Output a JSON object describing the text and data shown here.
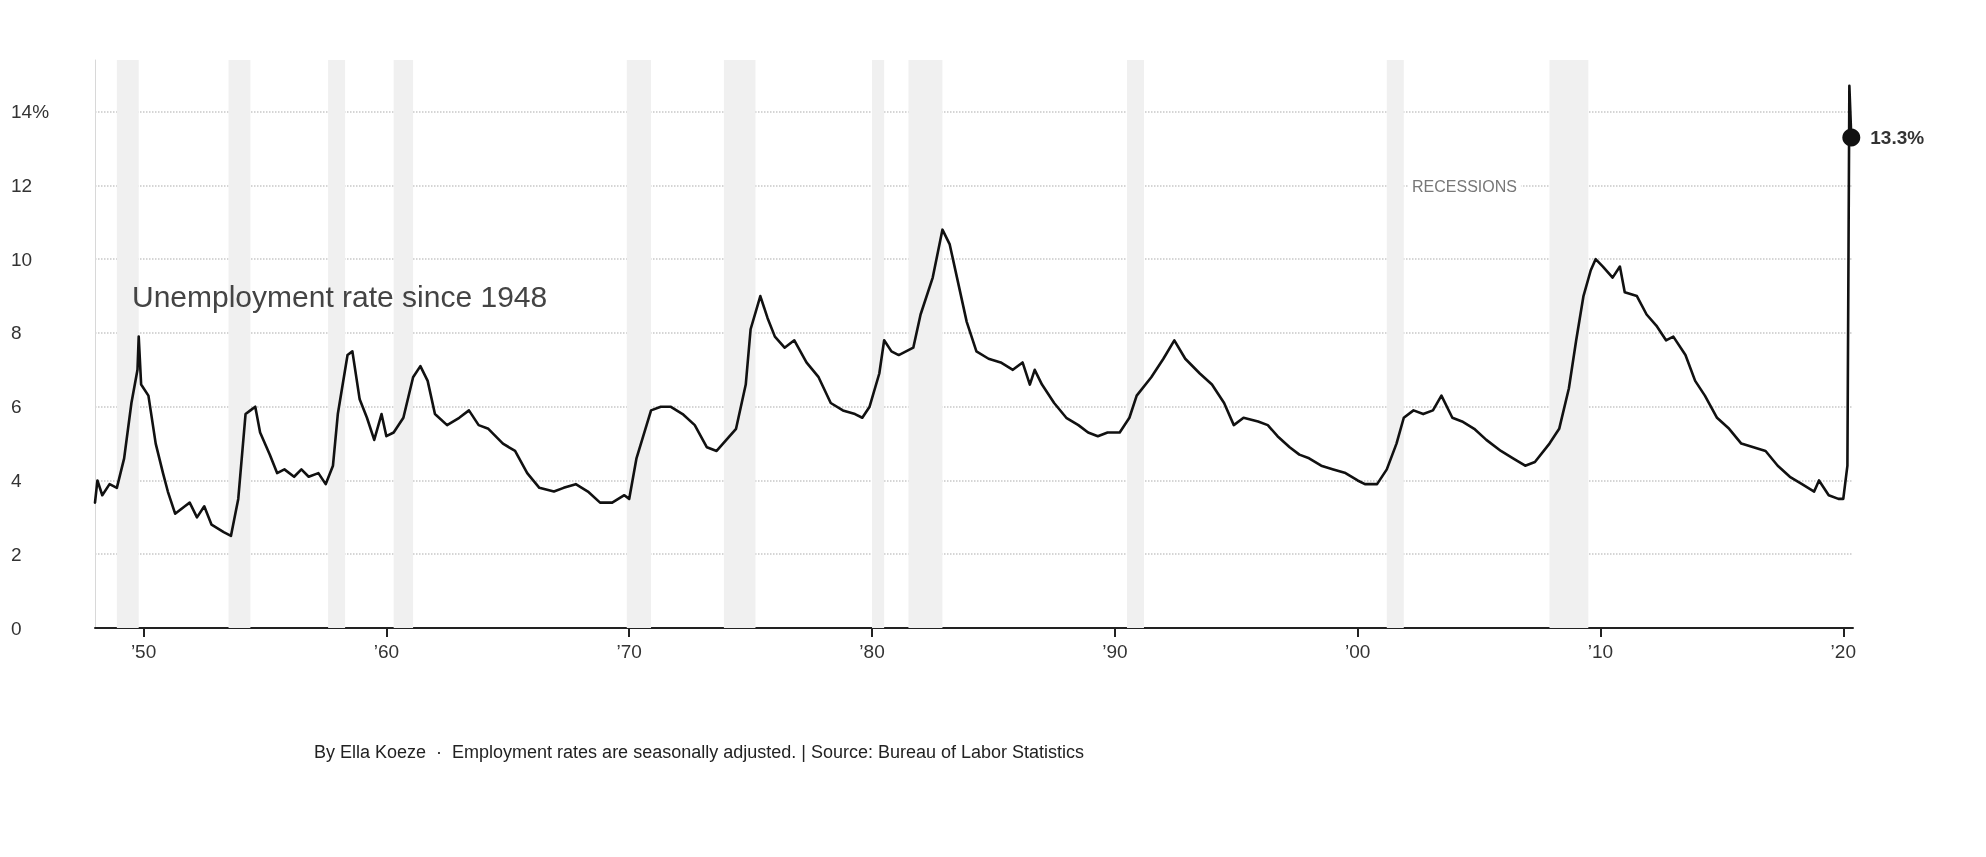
{
  "chart_data": {
    "type": "line",
    "title": "Unemployment rate since 1948",
    "x": [
      1948.0,
      1948.1,
      1948.3,
      1948.6,
      1948.9,
      1949.2,
      1949.5,
      1949.75,
      1949.8,
      1949.9,
      1950.2,
      1950.5,
      1950.8,
      1951.0,
      1951.3,
      1951.7,
      1951.9,
      1952.2,
      1952.5,
      1952.8,
      1953.3,
      1953.6,
      1953.9,
      1954.2,
      1954.4,
      1954.6,
      1954.8,
      1955.2,
      1955.5,
      1955.8,
      1956.2,
      1956.5,
      1956.8,
      1957.2,
      1957.5,
      1957.8,
      1958.0,
      1958.4,
      1958.6,
      1958.9,
      1959.2,
      1959.5,
      1959.8,
      1960.0,
      1960.3,
      1960.7,
      1961.1,
      1961.4,
      1961.7,
      1962.0,
      1962.5,
      1963.0,
      1963.4,
      1963.8,
      1964.2,
      1964.8,
      1965.3,
      1965.8,
      1966.3,
      1966.9,
      1967.3,
      1967.8,
      1968.3,
      1968.8,
      1969.3,
      1969.8,
      1970.0,
      1970.3,
      1970.9,
      1971.3,
      1971.7,
      1972.2,
      1972.7,
      1973.2,
      1973.6,
      1974.0,
      1974.4,
      1974.8,
      1975.0,
      1975.4,
      1975.7,
      1976.0,
      1976.4,
      1976.8,
      1977.3,
      1977.8,
      1978.3,
      1978.8,
      1979.3,
      1979.6,
      1979.9,
      1980.3,
      1980.5,
      1980.8,
      1981.1,
      1981.4,
      1981.7,
      1982.0,
      1982.5,
      1982.9,
      1983.2,
      1983.5,
      1983.9,
      1984.3,
      1984.8,
      1985.3,
      1985.8,
      1986.2,
      1986.5,
      1986.7,
      1987.0,
      1987.5,
      1988.0,
      1988.5,
      1988.9,
      1989.3,
      1989.7,
      1990.2,
      1990.6,
      1990.9,
      1991.5,
      1992.0,
      1992.45,
      1992.9,
      1993.5,
      1994.0,
      1994.5,
      1994.9,
      1995.3,
      1995.9,
      1996.3,
      1996.7,
      1997.2,
      1997.6,
      1998.0,
      1998.5,
      1999.0,
      1999.5,
      2000.0,
      2000.3,
      2000.8,
      2001.2,
      2001.6,
      2001.9,
      2002.3,
      2002.7,
      2003.1,
      2003.45,
      2003.9,
      2004.3,
      2004.8,
      2005.3,
      2005.9,
      2006.4,
      2006.9,
      2007.3,
      2007.9,
      2008.3,
      2008.7,
      2009.0,
      2009.3,
      2009.6,
      2009.8,
      2010.1,
      2010.5,
      2010.8,
      2011.0,
      2011.5,
      2011.9,
      2012.3,
      2012.7,
      2013.0,
      2013.5,
      2013.9,
      2014.3,
      2014.8,
      2015.3,
      2015.8,
      2016.3,
      2016.8,
      2017.3,
      2017.8,
      2018.3,
      2018.8,
      2019.0,
      2019.4,
      2019.8,
      2020.0,
      2020.17,
      2020.25,
      2020.33
    ],
    "series": [
      {
        "color": "#111111",
        "values": [
          3.4,
          4.0,
          3.6,
          3.9,
          3.8,
          4.6,
          6.1,
          7.0,
          7.9,
          6.6,
          6.3,
          5.0,
          4.2,
          3.7,
          3.1,
          3.3,
          3.4,
          3.0,
          3.3,
          2.8,
          2.6,
          2.5,
          3.5,
          5.8,
          5.9,
          6.0,
          5.3,
          4.7,
          4.2,
          4.3,
          4.1,
          4.3,
          4.1,
          4.2,
          3.9,
          4.4,
          5.8,
          7.4,
          7.5,
          6.2,
          5.7,
          5.1,
          5.8,
          5.2,
          5.3,
          5.7,
          6.8,
          7.1,
          6.7,
          5.8,
          5.5,
          5.7,
          5.9,
          5.5,
          5.4,
          5.0,
          4.8,
          4.2,
          3.8,
          3.7,
          3.8,
          3.9,
          3.7,
          3.4,
          3.4,
          3.6,
          3.5,
          4.6,
          5.9,
          6.0,
          6.0,
          5.8,
          5.5,
          4.9,
          4.8,
          5.1,
          5.4,
          6.6,
          8.1,
          9.0,
          8.4,
          7.9,
          7.6,
          7.8,
          7.2,
          6.8,
          6.1,
          5.9,
          5.8,
          5.7,
          6.0,
          6.9,
          7.8,
          7.5,
          7.4,
          7.5,
          7.6,
          8.5,
          9.5,
          10.8,
          10.4,
          9.5,
          8.3,
          7.5,
          7.3,
          7.2,
          7.0,
          7.2,
          6.6,
          7.0,
          6.6,
          6.1,
          5.7,
          5.5,
          5.3,
          5.2,
          5.3,
          5.3,
          5.7,
          6.3,
          6.8,
          7.3,
          7.8,
          7.3,
          6.9,
          6.6,
          6.1,
          5.5,
          5.7,
          5.6,
          5.5,
          5.2,
          4.9,
          4.7,
          4.6,
          4.4,
          4.3,
          4.2,
          4.0,
          3.9,
          3.9,
          4.3,
          5.0,
          5.7,
          5.9,
          5.8,
          5.9,
          6.3,
          5.7,
          5.6,
          5.4,
          5.1,
          4.8,
          4.6,
          4.4,
          4.5,
          5.0,
          5.4,
          6.5,
          7.8,
          9.0,
          9.7,
          10.0,
          9.8,
          9.5,
          9.8,
          9.1,
          9.0,
          8.5,
          8.2,
          7.8,
          7.9,
          7.4,
          6.7,
          6.3,
          5.7,
          5.4,
          5.0,
          4.9,
          4.8,
          4.4,
          4.1,
          3.9,
          3.7,
          4.0,
          3.6,
          3.5,
          3.5,
          4.4,
          14.7,
          13.3
        ]
      }
    ],
    "xlim": [
      1948,
      2020.4
    ],
    "xticks": [
      {
        "value": 1950,
        "label": "’50"
      },
      {
        "value": 1960,
        "label": "’60"
      },
      {
        "value": 1970,
        "label": "’70"
      },
      {
        "value": 1980,
        "label": "’80"
      },
      {
        "value": 1990,
        "label": "’90"
      },
      {
        "value": 2000,
        "label": "’00"
      },
      {
        "value": 2010,
        "label": "’10"
      },
      {
        "value": 2020,
        "label": "’20"
      }
    ],
    "ylim": [
      0,
      15.4
    ],
    "yticks": [
      0,
      2,
      4,
      6,
      8,
      10,
      12,
      {
        "value": 14,
        "label": "14%"
      }
    ],
    "grid": "y",
    "marker": "none",
    "line_style": "solid",
    "bands": [
      {
        "axis": "x",
        "from": 1948.9,
        "to": 1949.8,
        "color": "#f0f0f0"
      },
      {
        "axis": "x",
        "from": 1953.5,
        "to": 1954.4,
        "color": "#f0f0f0"
      },
      {
        "axis": "x",
        "from": 1957.6,
        "to": 1958.3,
        "color": "#f0f0f0"
      },
      {
        "axis": "x",
        "from": 1960.3,
        "to": 1961.1,
        "color": "#f0f0f0"
      },
      {
        "axis": "x",
        "from": 1969.9,
        "to": 1970.9,
        "color": "#f0f0f0"
      },
      {
        "axis": "x",
        "from": 1973.9,
        "to": 1975.2,
        "color": "#f0f0f0"
      },
      {
        "axis": "x",
        "from": 1980.0,
        "to": 1980.5,
        "color": "#f0f0f0"
      },
      {
        "axis": "x",
        "from": 1981.5,
        "to": 1982.9,
        "color": "#f0f0f0"
      },
      {
        "axis": "x",
        "from": 1990.5,
        "to": 1991.2,
        "color": "#f0f0f0"
      },
      {
        "axis": "x",
        "from": 2001.2,
        "to": 2001.9,
        "color": "#f0f0f0"
      },
      {
        "axis": "x",
        "from": 2007.9,
        "to": 2009.5,
        "color": "#f0f0f0"
      }
    ],
    "annotations": [
      "RECESSIONS",
      {
        "text": "13.3%",
        "x": 2020.33,
        "y": 13.3
      },
      "By Ella Koeze  ·  Employment rates are seasonally adjusted. | Source: Bureau of Labor Statistics"
    ]
  }
}
